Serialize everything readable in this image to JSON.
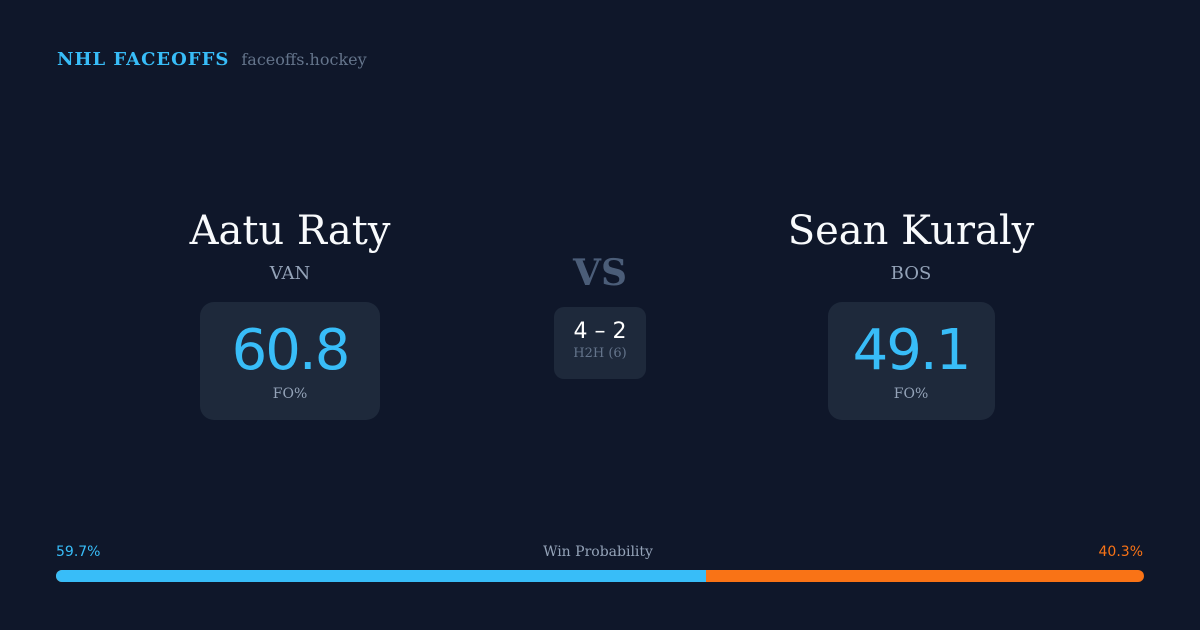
{
  "brand": {
    "title": "NHL FACEOFFS",
    "url": "faceoffs.hockey"
  },
  "players": [
    {
      "name": "Aatu Raty",
      "team": "VAN",
      "fo_pct": "60.8",
      "fo_label": "FO%"
    },
    {
      "name": "Sean Kuraly",
      "team": "BOS",
      "fo_pct": "49.1",
      "fo_label": "FO%"
    }
  ],
  "vs": "VS",
  "h2h": {
    "score": "4 – 2",
    "label": "H2H (6)"
  },
  "win_probability": {
    "label": "Win Probability",
    "left": "59.7%",
    "right": "40.3%",
    "left_value": 59.7,
    "right_value": 40.3,
    "left_color": "#38bdf8",
    "right_color": "#f97316"
  }
}
